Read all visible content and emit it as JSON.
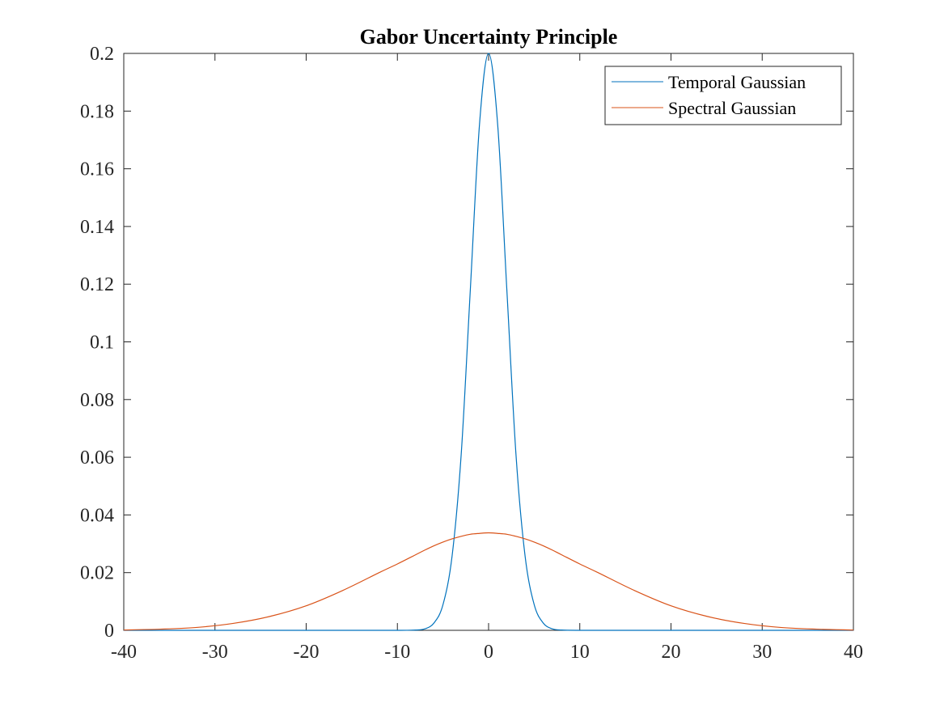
{
  "chart_data": {
    "type": "line",
    "title": "Gabor Uncertainty Principle",
    "xlabel": "",
    "ylabel": "",
    "xlim": [
      -40,
      40
    ],
    "ylim": [
      0,
      0.2
    ],
    "x_ticks": [
      -40,
      -30,
      -20,
      -10,
      0,
      10,
      20,
      30,
      40
    ],
    "x_tick_labels": [
      "-40",
      "-30",
      "-20",
      "-10",
      "0",
      "10",
      "20",
      "30",
      "40"
    ],
    "y_ticks": [
      0,
      0.02,
      0.04,
      0.06,
      0.08,
      0.1,
      0.12,
      0.14,
      0.16,
      0.18,
      0.2
    ],
    "y_tick_labels": [
      "0",
      "0.02",
      "0.04",
      "0.06",
      "0.08",
      "0.1",
      "0.12",
      "0.14",
      "0.16",
      "0.18",
      "0.2"
    ],
    "grid": false,
    "legend_location": "top-right",
    "x": [
      -40,
      -36,
      -32,
      -28,
      -24,
      -20,
      -16,
      -12,
      -10,
      -8,
      -7,
      -6,
      -5,
      -4,
      -3,
      -2,
      -1,
      0,
      1,
      2,
      3,
      4,
      5,
      6,
      7,
      8,
      10,
      12,
      16,
      20,
      24,
      28,
      32,
      36,
      40
    ],
    "series": [
      {
        "name": "Temporal Gaussian",
        "color": "#0072BD",
        "values": [
          0,
          0,
          0,
          0,
          0,
          0,
          0,
          0,
          0,
          0.0001,
          0.0005,
          0.0025,
          0.0089,
          0.0258,
          0.0611,
          0.1182,
          0.1752,
          0.2,
          0.1752,
          0.1182,
          0.0611,
          0.0258,
          0.0089,
          0.0025,
          0.0005,
          0.0001,
          0,
          0,
          0,
          0,
          0,
          0,
          0,
          0,
          0
        ]
      },
      {
        "name": "Spectral Gaussian",
        "color": "#D95319",
        "values": [
          0.0001,
          0.0004,
          0.001,
          0.0024,
          0.0048,
          0.0085,
          0.0138,
          0.02,
          0.023,
          0.0262,
          0.0278,
          0.0293,
          0.0306,
          0.0317,
          0.0326,
          0.0333,
          0.0336,
          0.0338,
          0.0336,
          0.0333,
          0.0326,
          0.0317,
          0.0306,
          0.0293,
          0.0278,
          0.0262,
          0.023,
          0.02,
          0.0138,
          0.0085,
          0.0048,
          0.0024,
          0.001,
          0.0004,
          0.0001
        ]
      }
    ]
  }
}
